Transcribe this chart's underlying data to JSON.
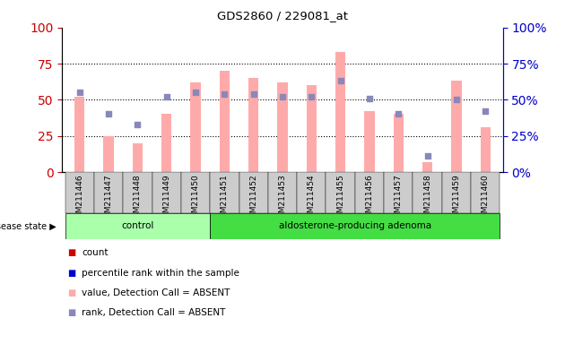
{
  "title": "GDS2860 / 229081_at",
  "samples": [
    "GSM211446",
    "GSM211447",
    "GSM211448",
    "GSM211449",
    "GSM211450",
    "GSM211451",
    "GSM211452",
    "GSM211453",
    "GSM211454",
    "GSM211455",
    "GSM211456",
    "GSM211457",
    "GSM211458",
    "GSM211459",
    "GSM211460"
  ],
  "bar_values": [
    52,
    25,
    20,
    40,
    62,
    70,
    65,
    62,
    60,
    83,
    42,
    40,
    7,
    63,
    31
  ],
  "blue_dot_values": [
    55,
    40,
    33,
    52,
    55,
    54,
    54,
    52,
    52,
    63,
    51,
    40,
    11,
    50,
    42
  ],
  "control_count": 5,
  "adenoma_count": 10,
  "group_labels": [
    "control",
    "aldosterone-producing adenoma"
  ],
  "disease_state_label": "disease state",
  "legend_labels": [
    "count",
    "percentile rank within the sample",
    "value, Detection Call = ABSENT",
    "rank, Detection Call = ABSENT"
  ],
  "ylim": [
    0,
    100
  ],
  "yticks": [
    0,
    25,
    50,
    75,
    100
  ],
  "bar_color": "#ffaaaa",
  "dot_color": "#8888bb",
  "left_axis_color": "#cc0000",
  "right_axis_color": "#0000cc",
  "grid_color": "black",
  "control_bg": "#aaffaa",
  "adenoma_bg": "#44dd44",
  "xticklabel_bg": "#cccccc",
  "bar_width": 0.35
}
